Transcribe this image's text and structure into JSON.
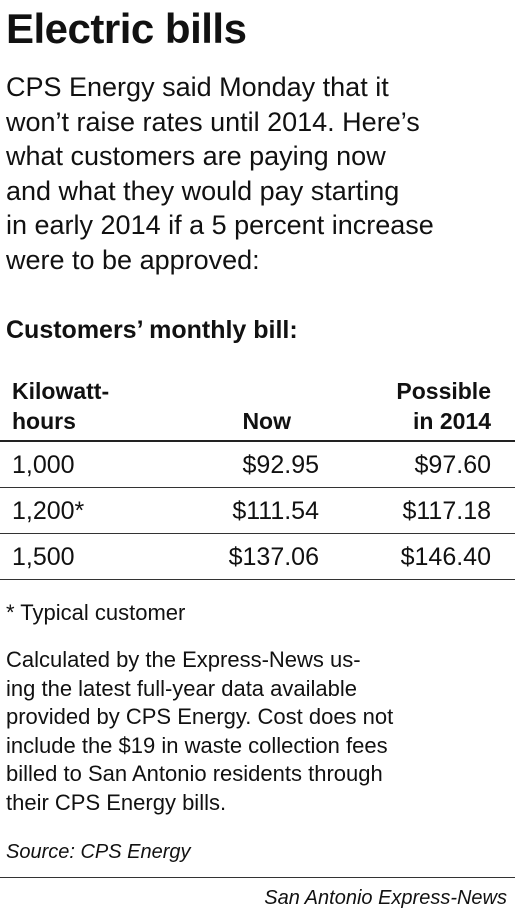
{
  "title": "Electric bills",
  "intro_lines": [
    "CPS Energy said Monday that it",
    "won’t raise rates until 2014. Here’s",
    "what customers are paying now",
    "and what they would pay starting",
    "in early 2014 if a 5 percent increase",
    "were to be approved:"
  ],
  "section_heading": "Customers’ monthly bill:",
  "table": {
    "headers": {
      "kwh": [
        "Kilowatt-",
        "hours"
      ],
      "now": [
        "Now"
      ],
      "possible": [
        "Possible",
        "in 2014"
      ]
    },
    "rows": [
      {
        "kwh": "1,000",
        "now": "$92.95",
        "possible": "$97.60"
      },
      {
        "kwh": "1,200*",
        "now": "$111.54",
        "possible": "$117.18"
      },
      {
        "kwh": "1,500",
        "now": "$137.06",
        "possible": "$146.40"
      }
    ]
  },
  "footnote": "* Typical customer",
  "note_lines": [
    "Calculated by the Express-News us-",
    "ing the latest full-year data available",
    "provided by CPS Energy. Cost does not",
    "include the $19 in waste collection fees",
    "billed to San Antonio residents through",
    "their CPS Energy bills."
  ],
  "source": "Source: CPS Energy",
  "credit": "San Antonio Express-News"
}
